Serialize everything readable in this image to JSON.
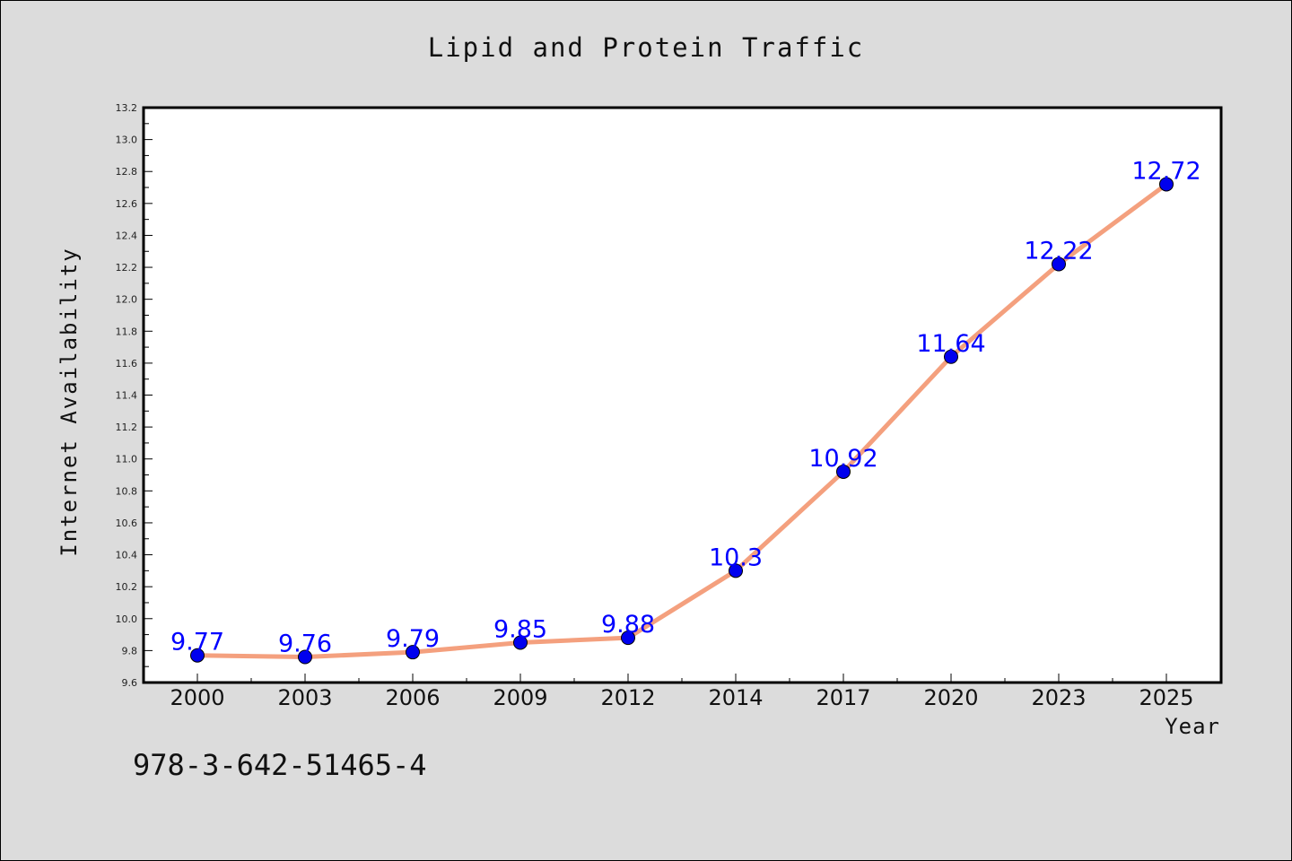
{
  "chart_data": {
    "type": "line",
    "title": "Lipid and Protein Traffic",
    "xlabel": "Year",
    "ylabel": "Internet Availability",
    "categories": [
      "2000",
      "2003",
      "2006",
      "2009",
      "2012",
      "2014",
      "2017",
      "2020",
      "2023",
      "2025"
    ],
    "series": [
      {
        "values": [
          9.77,
          9.76,
          9.79,
          9.85,
          9.88,
          10.3,
          10.92,
          11.64,
          12.22,
          12.72
        ],
        "data_labels": [
          "9.77",
          "9.76",
          "9.79",
          "9.85",
          "9.88",
          "10.3",
          "10.92",
          "11.64",
          "12.22",
          "12.72"
        ]
      }
    ],
    "ylim": [
      9.6,
      13.2
    ],
    "yticks": [
      "9.6",
      "9.8",
      "10.0",
      "10.2",
      "10.4",
      "10.6",
      "10.8",
      "11.0",
      "11.2",
      "11.4",
      "11.6",
      "11.8",
      "12.0",
      "12.2",
      "12.4",
      "12.6",
      "12.8",
      "13.0",
      "13.2"
    ],
    "grid": false,
    "legend": "none",
    "colors": {
      "line": "#f4a07e",
      "marker": "#0000ee",
      "data_label": "#0000ff",
      "plot_background": "#ffffff",
      "figure_background": "#dcdcdc"
    }
  },
  "footer": {
    "identifier": "978-3-642-51465-4"
  }
}
